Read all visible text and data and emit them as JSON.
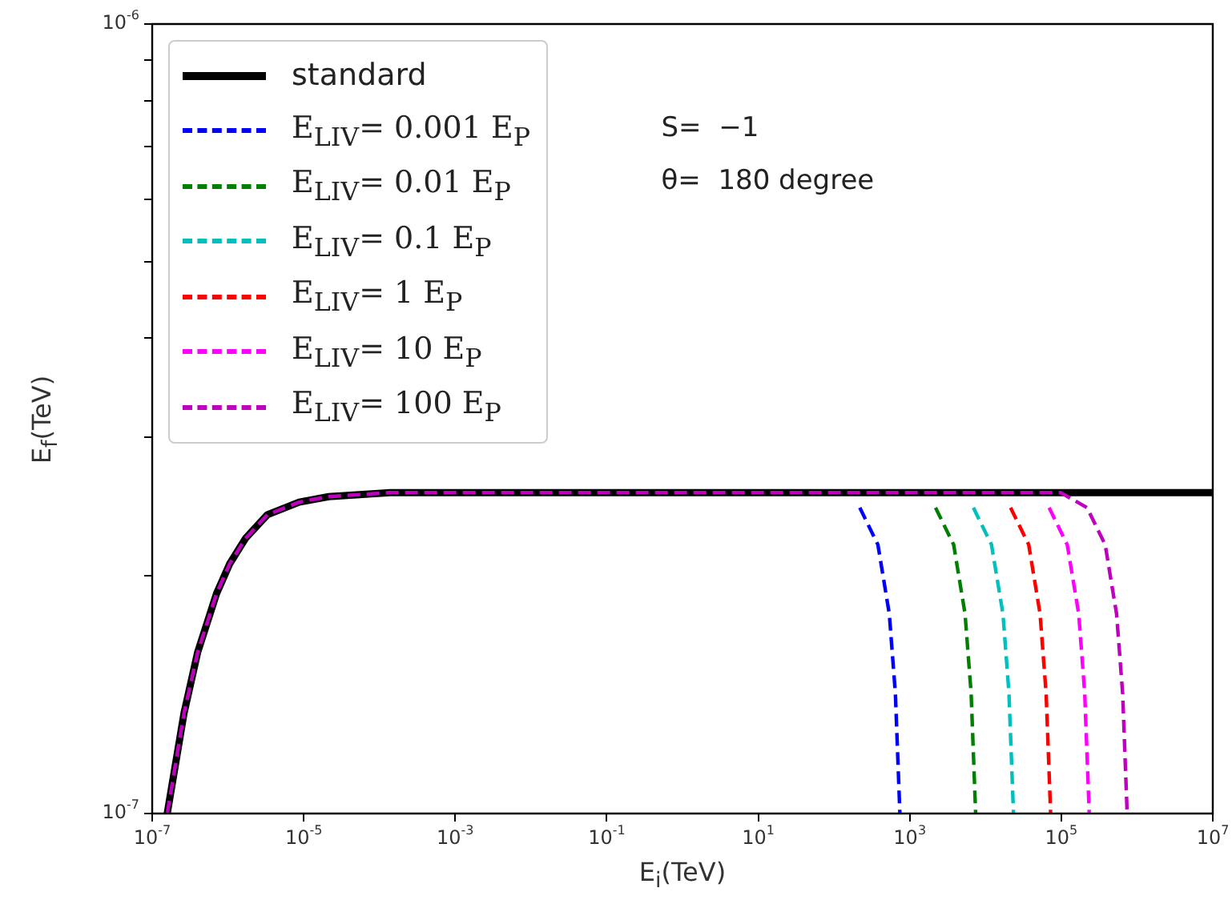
{
  "chart_data": {
    "type": "line",
    "xlabel": "E$_{i}$(TeV)",
    "ylabel": "E$_{f}$(TeV)",
    "log": "xy",
    "xlim": [
      1e-07,
      10000000.0
    ],
    "ylim": [
      1e-07,
      1e-06
    ],
    "xticks": [
      {
        "value": 1e-07,
        "label": "10$^{-7}$"
      },
      {
        "value": 1e-05,
        "label": "10$^{-5}$"
      },
      {
        "value": 0.001,
        "label": "10$^{-3}$"
      },
      {
        "value": 0.1,
        "label": "10$^{-1}$"
      },
      {
        "value": 10,
        "label": "10$^{1}$"
      },
      {
        "value": 1000,
        "label": "10$^{3}$"
      },
      {
        "value": 100000,
        "label": "10$^{5}$"
      },
      {
        "value": 10000000,
        "label": "10$^{7}$"
      }
    ],
    "yticks": [
      {
        "value": 1e-07,
        "label": "10$^{-7}$"
      },
      {
        "value": 2e-07,
        "label": null
      },
      {
        "value": 3e-07,
        "label": null
      },
      {
        "value": 4e-07,
        "label": null
      },
      {
        "value": 5e-07,
        "label": null
      },
      {
        "value": 6e-07,
        "label": null
      },
      {
        "value": 7e-07,
        "label": null
      },
      {
        "value": 8e-07,
        "label": null
      },
      {
        "value": 9e-07,
        "label": null
      },
      {
        "value": 1e-06,
        "label": "10$^{-6}$"
      }
    ],
    "grid": false,
    "legend": "top left",
    "annotations": [
      "S=  −1",
      "θ=  180 degree"
    ],
    "series": [
      {
        "name": "standard",
        "color": "#000000",
        "line_style": "solid",
        "x": [
          1.58e-07,
          2.63e-07,
          3.98e-07,
          7.08e-07,
          1.05e-06,
          1.7e-06,
          3.31e-06,
          8.71e-06,
          2.14e-05,
          0.000138,
          10000000.0
        ],
        "values": [
          1e-07,
          1.34e-07,
          1.6e-07,
          1.9e-07,
          2.07e-07,
          2.23e-07,
          2.39e-07,
          2.48e-07,
          2.52e-07,
          2.55e-07,
          2.55e-07
        ]
      },
      {
        "name": "E$_{LIV}$= 0.001 E$_{P}$",
        "color": "#0000ff",
        "line_style": "dashed",
        "x": [
          219,
          380,
          537,
          646,
          741
        ],
        "values": [
          2.44e-07,
          2.19e-07,
          1.79e-07,
          1.42e-07,
          1e-07
        ]
      },
      {
        "name": "E$_{LIV}$= 0.01 E$_{P}$",
        "color": "#008000",
        "line_style": "dashed",
        "x": [
          2190,
          3800,
          5370,
          6460,
          7410
        ],
        "values": [
          2.44e-07,
          2.19e-07,
          1.79e-07,
          1.42e-07,
          1e-07
        ]
      },
      {
        "name": "E$_{LIV}$= 0.1 E$_{P}$",
        "color": "#00bfbf",
        "line_style": "dashed",
        "x": [
          6920,
          12000,
          17000,
          20400,
          23400
        ],
        "values": [
          2.44e-07,
          2.19e-07,
          1.79e-07,
          1.42e-07,
          1e-07
        ]
      },
      {
        "name": "E$_{LIV}$= 1 E$_{P}$",
        "color": "#ff0000",
        "line_style": "dashed",
        "x": [
          21400,
          37200,
          52500,
          63100,
          72400
        ],
        "values": [
          2.44e-07,
          2.19e-07,
          1.79e-07,
          1.42e-07,
          1e-07
        ]
      },
      {
        "name": "E$_{LIV}$= 10 E$_{P}$",
        "color": "#ff00ff",
        "line_style": "dashed",
        "x": [
          69200,
          120000,
          170000,
          204000,
          234000
        ],
        "values": [
          2.44e-07,
          2.19e-07,
          1.79e-07,
          1.42e-07,
          1e-07
        ]
      },
      {
        "name": "E$_{LIV}$= 100 E$_{P}$",
        "color": "#bf00bf",
        "line_style": "dashed",
        "x": [
          1.58e-07,
          2.63e-07,
          3.98e-07,
          7.08e-07,
          1.05e-06,
          1.7e-06,
          3.31e-06,
          8.71e-06,
          2.14e-05,
          0.000138,
          97700,
          219000,
          380000,
          537000,
          646000,
          741000
        ],
        "values": [
          1e-07,
          1.34e-07,
          1.6e-07,
          1.9e-07,
          2.07e-07,
          2.23e-07,
          2.39e-07,
          2.48e-07,
          2.52e-07,
          2.55e-07,
          2.55e-07,
          2.44e-07,
          2.19e-07,
          1.79e-07,
          1.42e-07,
          1e-07
        ]
      }
    ]
  }
}
